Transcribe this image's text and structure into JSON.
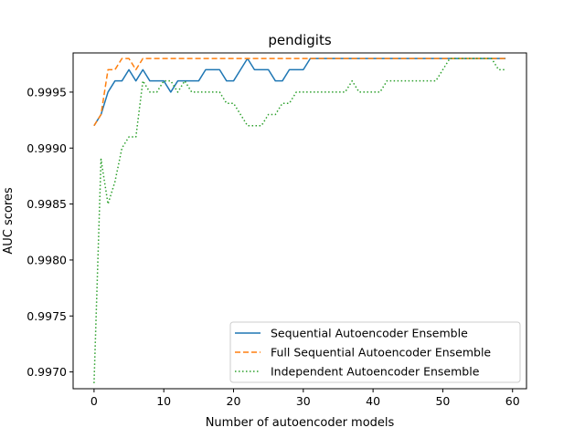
{
  "chart_data": {
    "type": "line",
    "title": "pendigits",
    "xlabel": "Number of autoencoder models",
    "ylabel": "AUC scores",
    "xlim": [
      -3.0,
      62.0
    ],
    "ylim": [
      0.99685,
      0.99985
    ],
    "xticks": [
      0,
      10,
      20,
      30,
      40,
      50,
      60
    ],
    "yticks": [
      0.997,
      0.9975,
      0.998,
      0.9985,
      0.999,
      0.9995
    ],
    "ytick_labels": [
      "0.9970",
      "0.9975",
      "0.9980",
      "0.9985",
      "0.9990",
      "0.9995"
    ],
    "grid": false,
    "legend_position": "lower-right",
    "x": [
      0,
      1,
      2,
      3,
      4,
      5,
      6,
      7,
      8,
      9,
      10,
      11,
      12,
      13,
      14,
      15,
      16,
      17,
      18,
      19,
      20,
      21,
      22,
      23,
      24,
      25,
      26,
      27,
      28,
      29,
      30,
      31,
      32,
      33,
      34,
      35,
      36,
      37,
      38,
      39,
      40,
      41,
      42,
      43,
      44,
      45,
      46,
      47,
      48,
      49,
      50,
      51,
      52,
      53,
      54,
      55,
      56,
      57,
      58,
      59
    ],
    "series": [
      {
        "name": "Sequential Autoencoder Ensemble",
        "color": "#1f77b4",
        "style": "solid",
        "values": [
          0.9992,
          0.9993,
          0.9995,
          0.9996,
          0.9996,
          0.9997,
          0.9996,
          0.9997,
          0.9996,
          0.9996,
          0.9996,
          0.9995,
          0.9996,
          0.9996,
          0.9996,
          0.9996,
          0.9997,
          0.9997,
          0.9997,
          0.9996,
          0.9996,
          0.9997,
          0.9998,
          0.9997,
          0.9997,
          0.9997,
          0.9996,
          0.9996,
          0.9997,
          0.9997,
          0.9997,
          0.9998,
          0.9998,
          0.9998,
          0.9998,
          0.9998,
          0.9998,
          0.9998,
          0.9998,
          0.9998,
          0.9998,
          0.9998,
          0.9998,
          0.9998,
          0.9998,
          0.9998,
          0.9998,
          0.9998,
          0.9998,
          0.9998,
          0.9998,
          0.9998,
          0.9998,
          0.9998,
          0.9998,
          0.9998,
          0.9998,
          0.9998,
          0.9998,
          0.9998
        ]
      },
      {
        "name": "Full Sequential Autoencoder Ensemble",
        "color": "#ff7f0e",
        "style": "dashed",
        "values": [
          0.9992,
          0.9993,
          0.9997,
          0.9997,
          0.9998,
          0.9998,
          0.9997,
          0.9998,
          0.9998,
          0.9998,
          0.9998,
          0.9998,
          0.9998,
          0.9998,
          0.9998,
          0.9998,
          0.9998,
          0.9998,
          0.9998,
          0.9998,
          0.9998,
          0.9998,
          0.9998,
          0.9998,
          0.9998,
          0.9998,
          0.9998,
          0.9998,
          0.9998,
          0.9998,
          0.9998,
          0.9998,
          0.9998,
          0.9998,
          0.9998,
          0.9998,
          0.9998,
          0.9998,
          0.9998,
          0.9998,
          0.9998,
          0.9998,
          0.9998,
          0.9998,
          0.9998,
          0.9998,
          0.9998,
          0.9998,
          0.9998,
          0.9998,
          0.9998,
          0.9998,
          0.9998,
          0.9998,
          0.9998,
          0.9998,
          0.9998,
          0.9998,
          0.9998,
          0.9998
        ]
      },
      {
        "name": "Independent Autoencoder Ensemble",
        "color": "#2ca02c",
        "style": "dotted",
        "values": [
          0.9969,
          0.9989,
          0.9985,
          0.9987,
          0.999,
          0.9991,
          0.9991,
          0.9996,
          0.9995,
          0.9995,
          0.9996,
          0.9996,
          0.9995,
          0.9996,
          0.9995,
          0.9995,
          0.9995,
          0.9995,
          0.9995,
          0.9994,
          0.9994,
          0.9993,
          0.9992,
          0.9992,
          0.9992,
          0.9993,
          0.9993,
          0.9994,
          0.9994,
          0.9995,
          0.9995,
          0.9995,
          0.9995,
          0.9995,
          0.9995,
          0.9995,
          0.9995,
          0.9996,
          0.9995,
          0.9995,
          0.9995,
          0.9995,
          0.9996,
          0.9996,
          0.9996,
          0.9996,
          0.9996,
          0.9996,
          0.9996,
          0.9996,
          0.9997,
          0.9998,
          0.9998,
          0.9998,
          0.9998,
          0.9998,
          0.9998,
          0.9998,
          0.9997,
          0.9997
        ]
      }
    ]
  }
}
